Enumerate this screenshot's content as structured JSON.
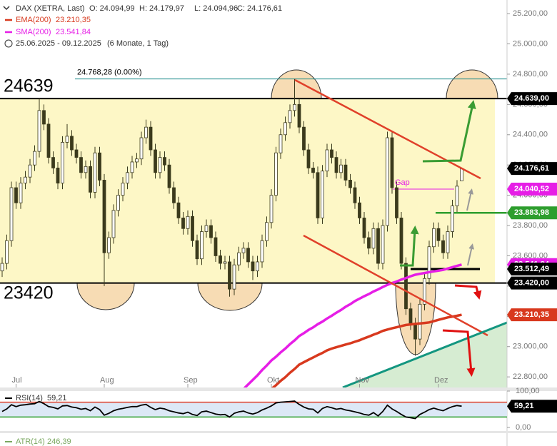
{
  "chart_data": {
    "type": "candlestick",
    "title": "DAX (XETRA, Last)",
    "open_label": "O: 24.094,99",
    "high_label": "H: 24.179,97",
    "low_label": "L: 24.094,96",
    "close_label": "C: 24.176,61",
    "period": "25.06.2025 - 09.12.2025",
    "period_note": "(6 Monate, 1 Tag)",
    "candle_color": "#3b3a1c",
    "ylim": [
      22730,
      25290
    ],
    "yticks": [
      {
        "value": 25200,
        "label": "25.200,00"
      },
      {
        "value": 25000,
        "label": "25.000,00"
      },
      {
        "value": 24800,
        "label": "24.800,00"
      },
      {
        "value": 24600,
        "label": "24.600,00"
      },
      {
        "value": 24400,
        "label": "24.400,00"
      },
      {
        "value": 24200,
        "label": "24.200,00"
      },
      {
        "value": 24000,
        "label": "24.000,00"
      },
      {
        "value": 23800,
        "label": "23.800,00"
      },
      {
        "value": 23600,
        "label": "23.600,00"
      },
      {
        "value": 23400,
        "label": "23.400,00"
      },
      {
        "value": 23200,
        "label": "23.200,00"
      },
      {
        "value": 23000,
        "label": "23.000,00"
      },
      {
        "value": 22800,
        "label": "22.800,00"
      }
    ],
    "grid": false,
    "categories": [
      null,
      null,
      null,
      "Jul",
      null,
      null,
      null,
      null,
      null,
      null,
      null,
      null,
      null,
      null,
      null,
      null,
      null,
      null,
      null,
      null,
      null,
      null,
      "Aug",
      null,
      null,
      null,
      null,
      null,
      null,
      null,
      null,
      null,
      null,
      null,
      null,
      null,
      null,
      null,
      null,
      null,
      "Sep",
      null,
      null,
      null,
      null,
      null,
      null,
      null,
      null,
      null,
      null,
      null,
      null,
      null,
      null,
      null,
      null,
      null,
      "Okt",
      null,
      null,
      null,
      null,
      null,
      null,
      null,
      null,
      null,
      null,
      null,
      null,
      null,
      null,
      null,
      null,
      null,
      null,
      "Nov",
      null,
      null,
      null,
      null,
      null,
      null,
      null,
      null,
      null,
      null,
      null,
      null,
      null,
      null,
      null,
      null,
      "Dez",
      null,
      null,
      null,
      null,
      null
    ],
    "candles": [
      [
        23500,
        23590,
        23460,
        23550
      ],
      [
        23550,
        23740,
        23510,
        23700
      ],
      [
        23700,
        24090,
        23660,
        24050
      ],
      [
        24050,
        24090,
        23910,
        23950
      ],
      [
        23950,
        24120,
        23910,
        24080
      ],
      [
        24080,
        24160,
        24040,
        24120
      ],
      [
        24120,
        24240,
        24080,
        24200
      ],
      [
        24200,
        24330,
        24160,
        24290
      ],
      [
        24290,
        24640,
        24250,
        24560
      ],
      [
        24560,
        24600,
        24430,
        24470
      ],
      [
        24470,
        24510,
        24210,
        24250
      ],
      [
        24250,
        24290,
        24140,
        24180
      ],
      [
        24180,
        24220,
        24040,
        24080
      ],
      [
        24080,
        24390,
        24040,
        24350
      ],
      [
        24350,
        24470,
        24310,
        24390
      ],
      [
        24390,
        24430,
        24260,
        24300
      ],
      [
        24300,
        24340,
        24210,
        24250
      ],
      [
        24250,
        24290,
        24110,
        24150
      ],
      [
        24150,
        24230,
        24110,
        24190
      ],
      [
        24190,
        24230,
        23980,
        24020
      ],
      [
        24020,
        24320,
        23980,
        24280
      ],
      [
        24280,
        24320,
        24060,
        24100
      ],
      [
        24100,
        24140,
        23400,
        23620
      ],
      [
        23620,
        23760,
        23580,
        23720
      ],
      [
        23720,
        23940,
        23680,
        23900
      ],
      [
        23900,
        24040,
        23860,
        24000
      ],
      [
        24000,
        24120,
        23960,
        24080
      ],
      [
        24080,
        24190,
        24040,
        24150
      ],
      [
        24150,
        24260,
        24110,
        24220
      ],
      [
        24220,
        24280,
        24180,
        24240
      ],
      [
        24240,
        24420,
        24200,
        24380
      ],
      [
        24380,
        24500,
        24340,
        24450
      ],
      [
        24450,
        24490,
        24260,
        24300
      ],
      [
        24300,
        24340,
        24110,
        24150
      ],
      [
        24150,
        24290,
        24110,
        24250
      ],
      [
        24250,
        24290,
        24160,
        24200
      ],
      [
        24200,
        24240,
        24010,
        24050
      ],
      [
        24050,
        24090,
        23910,
        23950
      ],
      [
        23950,
        23990,
        23810,
        23850
      ],
      [
        23850,
        23890,
        23740,
        23780
      ],
      [
        23780,
        23900,
        23740,
        23860
      ],
      [
        23860,
        23900,
        23660,
        23700
      ],
      [
        23700,
        23740,
        23540,
        23580
      ],
      [
        23580,
        23800,
        23540,
        23760
      ],
      [
        23760,
        23840,
        23720,
        23800
      ],
      [
        23800,
        23840,
        23680,
        23720
      ],
      [
        23720,
        23760,
        23560,
        23600
      ],
      [
        23600,
        23640,
        23510,
        23550
      ],
      [
        23550,
        23600,
        23510,
        23560
      ],
      [
        23560,
        23600,
        23330,
        23380
      ],
      [
        23380,
        23580,
        23340,
        23540
      ],
      [
        23540,
        23660,
        23500,
        23620
      ],
      [
        23620,
        23690,
        23580,
        23650
      ],
      [
        23650,
        23690,
        23520,
        23560
      ],
      [
        23560,
        23600,
        23440,
        23500
      ],
      [
        23500,
        23600,
        23460,
        23560
      ],
      [
        23560,
        23740,
        23520,
        23700
      ],
      [
        23700,
        23860,
        23660,
        23820
      ],
      [
        23820,
        24040,
        23780,
        24000
      ],
      [
        24000,
        24320,
        23960,
        24280
      ],
      [
        24280,
        24440,
        24240,
        24400
      ],
      [
        24400,
        24520,
        24360,
        24480
      ],
      [
        24480,
        24600,
        24440,
        24560
      ],
      [
        24560,
        24768,
        24520,
        24600
      ],
      [
        24600,
        24640,
        24410,
        24450
      ],
      [
        24450,
        24490,
        24260,
        24300
      ],
      [
        24300,
        24340,
        24140,
        24180
      ],
      [
        24180,
        24220,
        24110,
        24150
      ],
      [
        24150,
        24190,
        23810,
        23850
      ],
      [
        23850,
        24200,
        23810,
        24160
      ],
      [
        24160,
        24340,
        24120,
        24300
      ],
      [
        24300,
        24340,
        24210,
        24250
      ],
      [
        24250,
        24290,
        24110,
        24150
      ],
      [
        24150,
        24240,
        24110,
        24200
      ],
      [
        24200,
        24240,
        24060,
        24100
      ],
      [
        24100,
        24140,
        24010,
        24050
      ],
      [
        24050,
        24090,
        23910,
        23950
      ],
      [
        23950,
        23990,
        23810,
        23850
      ],
      [
        23850,
        23890,
        23680,
        23720
      ],
      [
        23720,
        23760,
        23610,
        23650
      ],
      [
        23650,
        23820,
        23610,
        23780
      ],
      [
        23780,
        23820,
        23510,
        23550
      ],
      [
        23550,
        23840,
        23510,
        23800
      ],
      [
        23800,
        24420,
        23760,
        24380
      ],
      [
        24380,
        24420,
        24010,
        24050
      ],
      [
        24050,
        24090,
        23810,
        23850
      ],
      [
        23850,
        23890,
        23510,
        23550
      ],
      [
        23550,
        23590,
        23210,
        23250
      ],
      [
        23250,
        23290,
        23110,
        23150
      ],
      [
        23150,
        23190,
        22940,
        23050
      ],
      [
        23050,
        23320,
        23010,
        23280
      ],
      [
        23280,
        23490,
        23240,
        23450
      ],
      [
        23450,
        23700,
        23410,
        23660
      ],
      [
        23660,
        23820,
        23620,
        23780
      ],
      [
        23780,
        23820,
        23660,
        23700
      ],
      [
        23700,
        23740,
        23580,
        23620
      ],
      [
        23620,
        23800,
        23580,
        23760
      ],
      [
        23760,
        23970,
        23720,
        23930
      ],
      [
        23930,
        24100,
        23890,
        24060
      ],
      [
        24094.99,
        24179.97,
        24094.96,
        24176.61
      ]
    ],
    "series": [
      {
        "name": "EMA(200)",
        "color": "#d8391e",
        "value_label": "23.210,35",
        "values": [
          null,
          null,
          null,
          null,
          null,
          null,
          null,
          null,
          null,
          null,
          null,
          null,
          null,
          null,
          null,
          null,
          null,
          null,
          null,
          null,
          null,
          null,
          null,
          null,
          null,
          null,
          null,
          null,
          null,
          null,
          null,
          null,
          null,
          null,
          null,
          null,
          null,
          null,
          null,
          null,
          null,
          null,
          null,
          null,
          null,
          null,
          null,
          null,
          null,
          null,
          null,
          null,
          null,
          null,
          null,
          null,
          null,
          null,
          22720,
          22745,
          22774,
          22798,
          22827,
          22852,
          22881,
          22897,
          22913,
          22928,
          22944,
          22958,
          22975,
          22987,
          22996,
          23005,
          23014,
          23022,
          23032,
          23042,
          23055,
          23066,
          23079,
          23090,
          23104,
          23113,
          23121,
          23128,
          23136,
          23143,
          23147,
          23150,
          23153,
          23156,
          23160,
          23168,
          23177,
          23185,
          23193,
          23198,
          23204,
          23210.35
        ]
      },
      {
        "name": "SMA(200)",
        "color": "#e61ee6",
        "value_label": "23.541,84",
        "values": [
          null,
          null,
          null,
          null,
          null,
          null,
          null,
          null,
          null,
          null,
          null,
          null,
          null,
          null,
          null,
          null,
          null,
          null,
          null,
          null,
          null,
          null,
          null,
          null,
          null,
          null,
          null,
          null,
          null,
          null,
          null,
          null,
          null,
          null,
          null,
          null,
          null,
          null,
          null,
          null,
          null,
          null,
          null,
          null,
          null,
          null,
          null,
          null,
          null,
          null,
          null,
          null,
          22720,
          22750,
          22780,
          22810,
          22845,
          22875,
          22908,
          22933,
          22962,
          22987,
          23016,
          23041,
          23070,
          23089,
          23110,
          23127,
          23148,
          23165,
          23186,
          23204,
          23224,
          23242,
          23263,
          23280,
          23301,
          23317,
          23333,
          23347,
          23364,
          23378,
          23394,
          23408,
          23420,
          23430,
          23443,
          23453,
          23465,
          23475,
          23481,
          23486,
          23492,
          23497,
          23502,
          23507,
          23516,
          23525,
          23534,
          23541.84
        ]
      }
    ],
    "levels": [
      {
        "value": 24639,
        "label": "24.639,00",
        "big_label": "24639",
        "color": "#000000",
        "kind": "tag"
      },
      {
        "value": 23420,
        "label": "23.420,00",
        "big_label": "23420",
        "color": "#000000",
        "kind": "tag"
      },
      {
        "value": 24768.28,
        "label": "24.768,28 (0.00%)",
        "color": "#1a8a8a",
        "kind": "marker"
      },
      {
        "value": 24040.52,
        "label": "24.040,52",
        "note": "Gap",
        "color": "#e61ee6",
        "kind": "tag"
      },
      {
        "value": 23883.98,
        "label": "23.883,98",
        "color": "#2e9e2e",
        "kind": "tag"
      },
      {
        "value": 23512.49,
        "label": "23.512,49",
        "color": "#000000",
        "kind": "tag"
      },
      {
        "value": 24176.61,
        "label": "24.176,61",
        "color": "#000000",
        "kind": "tag"
      }
    ],
    "rsi": {
      "name": "RSI(14)",
      "value_label": "59,21",
      "color": "#000000",
      "ylim": [
        0,
        100
      ],
      "yticks": [
        {
          "value": 100,
          "label": "100,00"
        },
        {
          "value": 0,
          "label": "0,00"
        }
      ],
      "upper": 70,
      "lower": 30,
      "values": [
        45,
        52,
        63,
        58,
        62,
        63,
        65,
        66,
        72,
        66,
        58,
        56,
        52,
        60,
        61,
        57,
        55,
        51,
        53,
        47,
        57,
        50,
        35,
        40,
        47,
        51,
        53,
        56,
        58,
        58,
        62,
        64,
        56,
        50,
        54,
        52,
        47,
        44,
        41,
        39,
        43,
        37,
        34,
        44,
        46,
        42,
        38,
        36,
        37,
        30,
        40,
        44,
        46,
        41,
        38,
        42,
        49,
        54,
        60,
        68,
        70,
        71,
        72,
        73,
        64,
        57,
        52,
        51,
        41,
        53,
        58,
        55,
        51,
        53,
        49,
        47,
        44,
        41,
        37,
        35,
        42,
        33,
        45,
        62,
        52,
        45,
        37,
        30,
        28,
        26,
        37,
        43,
        50,
        54,
        50,
        47,
        53,
        58,
        61,
        59.21
      ]
    },
    "atr": {
      "name": "ATR(14)",
      "value_label": "246,39"
    }
  }
}
